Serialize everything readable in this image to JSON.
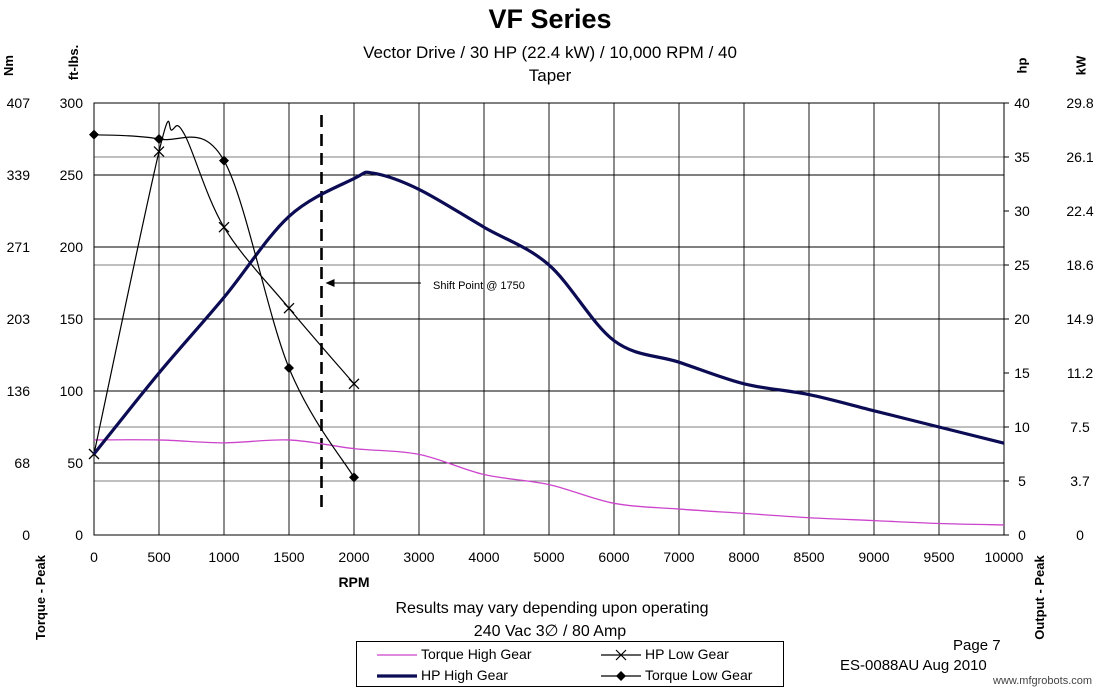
{
  "title": "VF Series",
  "subtitle_line1": "Vector Drive / 30 HP (22.4 kW) / 10,000 RPM / 40",
  "subtitle_line2": "Taper",
  "unit_labels": {
    "nm": "Nm",
    "ftlbs": "ft-lbs.",
    "hp": "hp",
    "kw": "kW",
    "torque_peak": "Torque - Peak",
    "output_peak": "Output - Peak"
  },
  "footnote_line1": "Results may vary depending upon operating",
  "footnote_line2": "240 Vac 3∅ / 80 Amp",
  "page_number": "Page 7",
  "document_id": "ES-0088AU Aug 2010",
  "watermark": "www.mfgrobots.com",
  "colors": {
    "magenta": "#cc44cc",
    "navy": "#0c0c55",
    "black": "#000000",
    "grid": "#000000"
  },
  "chart_data": {
    "type": "line",
    "title": "VF Series",
    "xlabel": "RPM",
    "x_ticks": [
      "0",
      "500",
      "1000",
      "1500",
      "2000",
      "3000",
      "4000",
      "5000",
      "6000",
      "7000",
      "8000",
      "8500",
      "9000",
      "9500",
      "10000"
    ],
    "x_tick_values": [
      0,
      500,
      1000,
      1500,
      2000,
      3000,
      4000,
      5000,
      6000,
      7000,
      8000,
      8500,
      9000,
      9500,
      10000
    ],
    "left_axis_ftlbs": {
      "ticks": [
        "0",
        "50",
        "100",
        "150",
        "200",
        "250",
        "300"
      ],
      "ylim": [
        0,
        300
      ]
    },
    "left_axis_nm": {
      "ticks": [
        "0",
        "68",
        "136",
        "203",
        "271",
        "339",
        "407"
      ]
    },
    "right_axis_hp": {
      "ticks": [
        "0",
        "5",
        "10",
        "15",
        "20",
        "25",
        "30",
        "35",
        "40"
      ],
      "ylim": [
        0,
        40
      ]
    },
    "right_axis_kw": {
      "ticks": [
        "0",
        "3.7",
        "7.5",
        "11.2",
        "14.9",
        "18.6",
        "22.4",
        "26.1",
        "29.8"
      ]
    },
    "annotation": {
      "text": "Shift Point @ 1750",
      "x_rpm": 1750
    },
    "series": [
      {
        "name": "Torque High Gear",
        "axis": "ftlbs",
        "color": "#cc44cc",
        "marker": "none",
        "stroke": 1.3,
        "points": [
          [
            0,
            66
          ],
          [
            500,
            66
          ],
          [
            1000,
            64
          ],
          [
            1500,
            66
          ],
          [
            2000,
            60
          ],
          [
            3000,
            56
          ],
          [
            4000,
            42
          ],
          [
            5000,
            35
          ],
          [
            6000,
            22
          ],
          [
            7000,
            18
          ],
          [
            8000,
            15
          ],
          [
            8500,
            12
          ],
          [
            9000,
            10
          ],
          [
            9500,
            8
          ],
          [
            10000,
            7
          ]
        ]
      },
      {
        "name": "HP Low Gear",
        "axis": "hp",
        "color": "#000000",
        "marker": "x",
        "stroke": 1.2,
        "points": [
          [
            0,
            7.5
          ],
          [
            500,
            35.5
          ],
          [
            600,
            37.5
          ],
          [
            700,
            37
          ],
          [
            1000,
            28.5
          ],
          [
            1500,
            21
          ],
          [
            2000,
            14
          ]
        ],
        "marked": [
          0,
          500,
          1000,
          1500,
          2000
        ]
      },
      {
        "name": "HP High Gear",
        "axis": "hp",
        "color": "#0c0c55",
        "marker": "none",
        "stroke": 3.2,
        "points": [
          [
            0,
            7.5
          ],
          [
            500,
            15
          ],
          [
            1000,
            22
          ],
          [
            1500,
            29.5
          ],
          [
            2000,
            33
          ],
          [
            2300,
            33.5
          ],
          [
            3000,
            32
          ],
          [
            4000,
            28.5
          ],
          [
            5000,
            25
          ],
          [
            6000,
            18
          ],
          [
            7000,
            16
          ],
          [
            8000,
            14
          ],
          [
            8500,
            13
          ],
          [
            9000,
            11.5
          ],
          [
            9500,
            10
          ],
          [
            10000,
            8.5
          ]
        ]
      },
      {
        "name": "Torque Low Gear",
        "axis": "ftlbs",
        "color": "#000000",
        "marker": "diamond",
        "stroke": 1.2,
        "points": [
          [
            0,
            278
          ],
          [
            500,
            275
          ],
          [
            1000,
            260
          ],
          [
            1500,
            116
          ],
          [
            2000,
            40
          ]
        ]
      }
    ],
    "legend": [
      "Torque High Gear",
      "HP Low Gear",
      "HP High Gear",
      "Torque Low Gear"
    ],
    "legend_position": "bottom"
  }
}
